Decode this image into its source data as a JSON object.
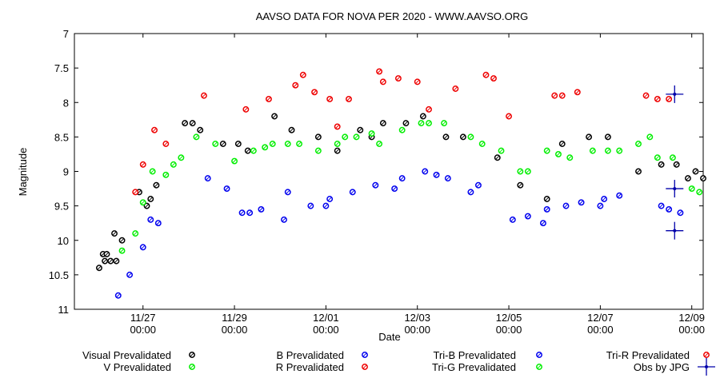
{
  "chart_data": {
    "type": "scatter",
    "title": "AAVSO DATA FOR NOVA PER 2020 - WWW.AAVSO.ORG",
    "xlabel": "Date",
    "ylabel": "Magnitude",
    "x_unit": "days",
    "xlim": [
      "2020-11-25T12:00",
      "2020-12-09T06:00"
    ],
    "ylim": [
      11,
      7
    ],
    "y_inverted": true,
    "x_ticks": [
      {
        "date": "2020-11-27T00:00",
        "label": [
          "11/27",
          "00:00"
        ]
      },
      {
        "date": "2020-11-29T00:00",
        "label": [
          "11/29",
          "00:00"
        ]
      },
      {
        "date": "2020-12-01T00:00",
        "label": [
          "12/01",
          "00:00"
        ]
      },
      {
        "date": "2020-12-03T00:00",
        "label": [
          "12/03",
          "00:00"
        ]
      },
      {
        "date": "2020-12-05T00:00",
        "label": [
          "12/05",
          "00:00"
        ]
      },
      {
        "date": "2020-12-07T00:00",
        "label": [
          "12/07",
          "00:00"
        ]
      },
      {
        "date": "2020-12-09T00:00",
        "label": [
          "12/09",
          "00:00"
        ]
      }
    ],
    "y_ticks": [
      7,
      7.5,
      8,
      8.5,
      9,
      9.5,
      10,
      10.5,
      11
    ],
    "grid": false,
    "legend_position": "bottom",
    "series": [
      {
        "name": "Visual Prevalidated",
        "color": "#000000",
        "marker": "open-circle",
        "points": [
          [
            "2020-11-26T01:00",
            10.4
          ],
          [
            "2020-11-26T03:00",
            10.2
          ],
          [
            "2020-11-26T04:00",
            10.3
          ],
          [
            "2020-11-26T05:00",
            10.2
          ],
          [
            "2020-11-26T07:00",
            10.3
          ],
          [
            "2020-11-26T09:00",
            9.9
          ],
          [
            "2020-11-26T10:00",
            10.3
          ],
          [
            "2020-11-26T13:00",
            10.0
          ],
          [
            "2020-11-26T22:00",
            9.3
          ],
          [
            "2020-11-27T02:00",
            9.5
          ],
          [
            "2020-11-27T04:00",
            9.4
          ],
          [
            "2020-11-27T07:00",
            9.2
          ],
          [
            "2020-11-27T22:00",
            8.3
          ],
          [
            "2020-11-28T02:00",
            8.3
          ],
          [
            "2020-11-28T06:00",
            8.4
          ],
          [
            "2020-11-28T18:00",
            8.6
          ],
          [
            "2020-11-29T02:00",
            8.6
          ],
          [
            "2020-11-29T07:00",
            8.7
          ],
          [
            "2020-11-29T21:00",
            8.2
          ],
          [
            "2020-11-30T06:00",
            8.4
          ],
          [
            "2020-11-30T20:00",
            8.5
          ],
          [
            "2020-12-01T06:00",
            8.7
          ],
          [
            "2020-12-01T18:00",
            8.4
          ],
          [
            "2020-12-02T00:00",
            8.5
          ],
          [
            "2020-12-02T06:00",
            8.3
          ],
          [
            "2020-12-02T18:00",
            8.3
          ],
          [
            "2020-12-03T03:00",
            8.2
          ],
          [
            "2020-12-03T15:00",
            8.5
          ],
          [
            "2020-12-04T00:00",
            8.5
          ],
          [
            "2020-12-04T18:00",
            8.8
          ],
          [
            "2020-12-05T06:00",
            9.2
          ],
          [
            "2020-12-05T20:00",
            9.4
          ],
          [
            "2020-12-06T04:00",
            8.6
          ],
          [
            "2020-12-06T18:00",
            8.5
          ],
          [
            "2020-12-07T04:00",
            8.5
          ],
          [
            "2020-12-07T20:00",
            9.0
          ],
          [
            "2020-12-08T08:00",
            8.9
          ],
          [
            "2020-12-08T16:00",
            8.9
          ],
          [
            "2020-12-08T22:00",
            9.1
          ],
          [
            "2020-12-09T02:00",
            9.0
          ],
          [
            "2020-12-09T06:00",
            9.1
          ]
        ]
      },
      {
        "name": "V Prevalidated",
        "color": "#00ee00",
        "marker": "open-circle",
        "points": [
          [
            "2020-11-26T13:00",
            10.15
          ],
          [
            "2020-11-26T20:00",
            9.9
          ],
          [
            "2020-11-27T00:00",
            9.45
          ],
          [
            "2020-11-27T05:00",
            9.0
          ],
          [
            "2020-11-27T12:00",
            9.05
          ],
          [
            "2020-11-27T20:00",
            8.8
          ],
          [
            "2020-11-28T04:00",
            8.5
          ],
          [
            "2020-11-28T14:00",
            8.6
          ],
          [
            "2020-11-29T00:00",
            8.85
          ],
          [
            "2020-11-29T10:00",
            8.7
          ],
          [
            "2020-11-29T20:00",
            8.6
          ],
          [
            "2020-11-30T10:00",
            8.6
          ],
          [
            "2020-11-30T20:00",
            8.7
          ],
          [
            "2020-12-01T06:00",
            8.6
          ],
          [
            "2020-12-01T16:00",
            8.5
          ],
          [
            "2020-12-02T04:00",
            8.6
          ],
          [
            "2020-12-02T16:00",
            8.4
          ],
          [
            "2020-12-03T02:00",
            8.3
          ],
          [
            "2020-12-03T14:00",
            8.3
          ],
          [
            "2020-12-04T04:00",
            8.5
          ],
          [
            "2020-12-04T20:00",
            8.7
          ],
          [
            "2020-12-05T06:00",
            9.0
          ],
          [
            "2020-12-05T20:00",
            8.7
          ],
          [
            "2020-12-06T08:00",
            8.8
          ],
          [
            "2020-12-06T20:00",
            8.7
          ],
          [
            "2020-12-07T10:00",
            8.7
          ],
          [
            "2020-12-07T20:00",
            8.6
          ],
          [
            "2020-12-08T06:00",
            8.8
          ],
          [
            "2020-12-08T14:00",
            8.8
          ],
          [
            "2020-12-09T00:00",
            9.25
          ],
          [
            "2020-12-09T04:00",
            9.3
          ]
        ]
      },
      {
        "name": "B Prevalidated",
        "color": "#0000ee",
        "marker": "open-circle",
        "points": [
          [
            "2020-11-26T11:00",
            10.8
          ],
          [
            "2020-11-26T17:00",
            10.5
          ],
          [
            "2020-11-27T00:00",
            10.1
          ],
          [
            "2020-11-27T08:00",
            9.75
          ],
          [
            "2020-11-28T10:00",
            9.1
          ],
          [
            "2020-11-28T20:00",
            9.25
          ],
          [
            "2020-11-29T04:00",
            9.6
          ],
          [
            "2020-11-29T14:00",
            9.55
          ],
          [
            "2020-11-30T02:00",
            9.7
          ],
          [
            "2020-11-30T16:00",
            9.5
          ],
          [
            "2020-12-01T02:00",
            9.4
          ],
          [
            "2020-12-01T14:00",
            9.3
          ],
          [
            "2020-12-02T02:00",
            9.2
          ],
          [
            "2020-12-02T16:00",
            9.1
          ],
          [
            "2020-12-03T04:00",
            9.0
          ],
          [
            "2020-12-03T16:00",
            9.1
          ],
          [
            "2020-12-04T04:00",
            9.3
          ],
          [
            "2020-12-05T02:00",
            9.7
          ],
          [
            "2020-12-05T18:00",
            9.75
          ],
          [
            "2020-12-06T06:00",
            9.5
          ],
          [
            "2020-12-07T00:00",
            9.5
          ],
          [
            "2020-12-07T10:00",
            9.35
          ],
          [
            "2020-12-08T08:00",
            9.5
          ],
          [
            "2020-12-08T18:00",
            9.6
          ]
        ]
      },
      {
        "name": "R Prevalidated",
        "color": "#ee0000",
        "marker": "open-circle",
        "points": [
          [
            "2020-11-26T20:00",
            9.3
          ],
          [
            "2020-11-27T00:00",
            8.9
          ],
          [
            "2020-11-27T06:00",
            8.4
          ],
          [
            "2020-11-27T12:00",
            8.6
          ],
          [
            "2020-11-28T08:00",
            7.9
          ],
          [
            "2020-11-29T06:00",
            8.1
          ],
          [
            "2020-11-29T18:00",
            7.95
          ],
          [
            "2020-11-30T12:00",
            7.6
          ],
          [
            "2020-11-30T18:00",
            7.85
          ],
          [
            "2020-12-01T02:00",
            7.95
          ],
          [
            "2020-12-01T06:00",
            8.35
          ],
          [
            "2020-12-01T12:00",
            7.95
          ],
          [
            "2020-12-02T06:00",
            7.7
          ],
          [
            "2020-12-02T14:00",
            7.65
          ],
          [
            "2020-12-03T00:00",
            7.7
          ],
          [
            "2020-12-03T06:00",
            8.1
          ],
          [
            "2020-12-03T20:00",
            7.8
          ],
          [
            "2020-12-04T12:00",
            7.6
          ],
          [
            "2020-12-05T00:00",
            8.2
          ],
          [
            "2020-12-06T00:00",
            7.9
          ],
          [
            "2020-12-06T12:00",
            7.85
          ],
          [
            "2020-12-08T00:00",
            7.9
          ],
          [
            "2020-12-08T12:00",
            7.95
          ]
        ]
      },
      {
        "name": "Tri-B Prevalidated",
        "color": "#0000ee",
        "marker": "open-circle",
        "points": [
          [
            "2020-11-27T04:00",
            9.7
          ],
          [
            "2020-11-29T08:00",
            9.6
          ],
          [
            "2020-11-30T04:00",
            9.3
          ],
          [
            "2020-12-01T00:00",
            9.5
          ],
          [
            "2020-12-02T12:00",
            9.25
          ],
          [
            "2020-12-03T10:00",
            9.05
          ],
          [
            "2020-12-04T08:00",
            9.2
          ],
          [
            "2020-12-05T10:00",
            9.65
          ],
          [
            "2020-12-05T20:00",
            9.55
          ],
          [
            "2020-12-06T14:00",
            9.45
          ],
          [
            "2020-12-07T02:00",
            9.4
          ],
          [
            "2020-12-08T12:00",
            9.55
          ]
        ]
      },
      {
        "name": "Tri-R Prevalidated",
        "color": "#ee0000",
        "marker": "open-circle",
        "points": [
          [
            "2020-11-30T08:00",
            7.75
          ],
          [
            "2020-12-02T04:00",
            7.55
          ],
          [
            "2020-12-04T16:00",
            7.65
          ],
          [
            "2020-12-06T04:00",
            7.9
          ],
          [
            "2020-12-08T06:00",
            7.95
          ]
        ]
      },
      {
        "name": "Tri-G Prevalidated",
        "color": "#00ee00",
        "marker": "open-circle",
        "points": [
          [
            "2020-11-27T16:00",
            8.9
          ],
          [
            "2020-11-29T16:00",
            8.65
          ],
          [
            "2020-11-30T04:00",
            8.6
          ],
          [
            "2020-12-01T10:00",
            8.5
          ],
          [
            "2020-12-02T00:00",
            8.45
          ],
          [
            "2020-12-03T06:00",
            8.3
          ],
          [
            "2020-12-04T10:00",
            8.6
          ],
          [
            "2020-12-05T10:00",
            9.0
          ],
          [
            "2020-12-06T02:00",
            8.75
          ],
          [
            "2020-12-07T04:00",
            8.7
          ],
          [
            "2020-12-08T02:00",
            8.5
          ]
        ]
      },
      {
        "name": "Obs by JPG",
        "color": "#0000aa",
        "marker": "cross",
        "points": [
          [
            "2020-12-08T15:00",
            7.88
          ],
          [
            "2020-12-08T15:00",
            9.25
          ],
          [
            "2020-12-08T15:00",
            9.86
          ]
        ]
      }
    ]
  }
}
